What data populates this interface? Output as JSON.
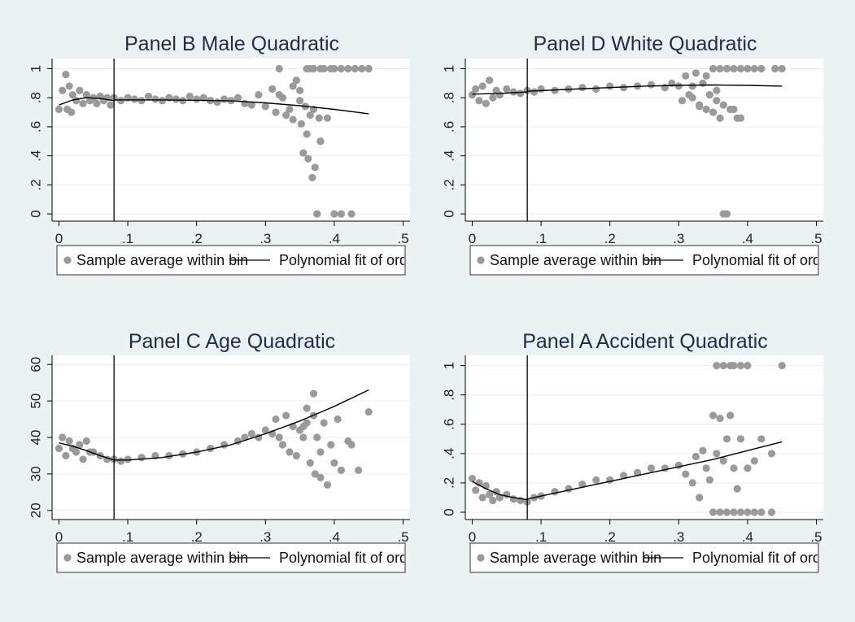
{
  "chart_data": [
    {
      "type": "scatter",
      "title": "Panel B Male Quadratic",
      "xlabel": "",
      "ylabel": "",
      "xlim": [
        -0.01,
        0.51
      ],
      "ylim": [
        -0.05,
        1.07
      ],
      "xticks": [
        0,
        0.1,
        0.2,
        0.3,
        0.4,
        0.5
      ],
      "xtick_labels": [
        "0",
        ".1",
        ".2",
        ".3",
        ".4",
        ".5"
      ],
      "yticks": [
        0,
        0.2,
        0.4,
        0.6,
        0.8,
        1
      ],
      "ytick_labels": [
        "0",
        ".2",
        ".4",
        ".6",
        ".8",
        "1"
      ],
      "grid": true,
      "cutoff_x": 0.08,
      "legend": {
        "position": "bottom",
        "entries": [
          "Sample average within bin",
          "Polynomial fit of orde"
        ]
      },
      "series": [
        {
          "kind": "scatter",
          "color": "#9a9a9a",
          "x": [
            0.0,
            0.005,
            0.01,
            0.012,
            0.015,
            0.018,
            0.02,
            0.025,
            0.03,
            0.035,
            0.04,
            0.045,
            0.05,
            0.055,
            0.06,
            0.065,
            0.07,
            0.075,
            0.08,
            0.09,
            0.1,
            0.11,
            0.12,
            0.13,
            0.14,
            0.15,
            0.16,
            0.17,
            0.18,
            0.19,
            0.2,
            0.21,
            0.22,
            0.23,
            0.24,
            0.25,
            0.26,
            0.27,
            0.28,
            0.29,
            0.3,
            0.31,
            0.315,
            0.32,
            0.325,
            0.33,
            0.335,
            0.34,
            0.345,
            0.35,
            0.352,
            0.355,
            0.358,
            0.36,
            0.362,
            0.365,
            0.368,
            0.37,
            0.372,
            0.375,
            0.378,
            0.38,
            0.385,
            0.39,
            0.395,
            0.4,
            0.41,
            0.42,
            0.43,
            0.44,
            0.45,
            0.375,
            0.4,
            0.41,
            0.425,
            0.36,
            0.37,
            0.38,
            0.35,
            0.34,
            0.365,
            0.38,
            0.32
          ],
          "y": [
            0.72,
            0.85,
            0.96,
            0.72,
            0.88,
            0.7,
            0.82,
            0.78,
            0.85,
            0.76,
            0.82,
            0.78,
            0.8,
            0.76,
            0.81,
            0.78,
            0.8,
            0.75,
            0.8,
            0.78,
            0.8,
            0.79,
            0.78,
            0.81,
            0.79,
            0.78,
            0.8,
            0.79,
            0.78,
            0.81,
            0.79,
            0.8,
            0.78,
            0.77,
            0.79,
            0.78,
            0.8,
            0.76,
            0.75,
            0.82,
            0.74,
            0.86,
            0.7,
            1.0,
            0.8,
            0.68,
            0.72,
            0.65,
            0.92,
            0.85,
            0.62,
            0.42,
            0.74,
            0.55,
            0.38,
            0.68,
            0.25,
            0.72,
            0.32,
            0.0,
            0.66,
            0.5,
            1.0,
            0.66,
            1.0,
            1.0,
            1.0,
            1.0,
            1.0,
            1.0,
            1.0,
            0.0,
            0.0,
            0.0,
            0.0,
            1.0,
            1.0,
            1.0,
            0.78,
            0.88,
            1.0,
            0.5,
            0.82
          ]
        },
        {
          "kind": "line",
          "color": "#000000",
          "x": [
            0.0,
            0.02,
            0.04,
            0.06,
            0.08
          ],
          "y": [
            0.75,
            0.785,
            0.8,
            0.795,
            0.78
          ]
        },
        {
          "kind": "line",
          "color": "#000000",
          "x": [
            0.08,
            0.15,
            0.2,
            0.25,
            0.3,
            0.35,
            0.4,
            0.45
          ],
          "y": [
            0.785,
            0.785,
            0.783,
            0.778,
            0.765,
            0.745,
            0.72,
            0.69
          ]
        }
      ]
    },
    {
      "type": "scatter",
      "title": "Panel D White Quadratic",
      "xlabel": "",
      "ylabel": "",
      "xlim": [
        -0.01,
        0.51
      ],
      "ylim": [
        -0.05,
        1.07
      ],
      "xticks": [
        0,
        0.1,
        0.2,
        0.3,
        0.4,
        0.5
      ],
      "xtick_labels": [
        "0",
        ".1",
        ".2",
        ".3",
        ".4",
        ".5"
      ],
      "yticks": [
        0,
        0.2,
        0.4,
        0.6,
        0.8,
        1
      ],
      "ytick_labels": [
        "0",
        ".2",
        ".4",
        ".6",
        ".8",
        "1"
      ],
      "grid": true,
      "cutoff_x": 0.08,
      "legend": {
        "position": "bottom",
        "entries": [
          "Sample average within bin",
          "Polynomial fit of order"
        ]
      },
      "series": [
        {
          "kind": "scatter",
          "color": "#9a9a9a",
          "x": [
            0.0,
            0.005,
            0.01,
            0.015,
            0.02,
            0.025,
            0.03,
            0.035,
            0.04,
            0.05,
            0.06,
            0.07,
            0.08,
            0.09,
            0.1,
            0.12,
            0.14,
            0.16,
            0.18,
            0.2,
            0.22,
            0.24,
            0.26,
            0.28,
            0.29,
            0.3,
            0.305,
            0.31,
            0.315,
            0.32,
            0.325,
            0.33,
            0.335,
            0.34,
            0.345,
            0.35,
            0.355,
            0.36,
            0.365,
            0.37,
            0.375,
            0.38,
            0.385,
            0.39,
            0.4,
            0.41,
            0.42,
            0.44,
            0.45,
            0.35,
            0.36,
            0.37,
            0.38,
            0.39,
            0.365,
            0.37,
            0.32,
            0.33,
            0.34,
            0.355
          ],
          "y": [
            0.82,
            0.86,
            0.78,
            0.88,
            0.76,
            0.92,
            0.8,
            0.85,
            0.82,
            0.86,
            0.84,
            0.83,
            0.85,
            0.84,
            0.86,
            0.85,
            0.86,
            0.87,
            0.86,
            0.88,
            0.87,
            0.88,
            0.89,
            0.87,
            0.9,
            0.88,
            0.78,
            0.95,
            0.82,
            0.88,
            0.97,
            0.75,
            0.9,
            0.72,
            0.82,
            0.7,
            0.85,
            0.66,
            0.75,
            1.0,
            0.72,
            1.0,
            0.66,
            1.0,
            1.0,
            1.0,
            1.0,
            1.0,
            1.0,
            1.0,
            1.0,
            1.0,
            0.72,
            0.66,
            0.0,
            0.0,
            0.8,
            0.74,
            0.95,
            0.78
          ]
        },
        {
          "kind": "line",
          "color": "#000000",
          "x": [
            0.0,
            0.04,
            0.08
          ],
          "y": [
            0.825,
            0.83,
            0.84
          ]
        },
        {
          "kind": "line",
          "color": "#000000",
          "x": [
            0.08,
            0.15,
            0.2,
            0.25,
            0.3,
            0.35,
            0.4,
            0.45
          ],
          "y": [
            0.845,
            0.86,
            0.87,
            0.88,
            0.885,
            0.888,
            0.885,
            0.88
          ]
        }
      ]
    },
    {
      "type": "scatter",
      "title": "Panel C Age Quadratic",
      "xlabel": "",
      "ylabel": "",
      "xlim": [
        -0.01,
        0.51
      ],
      "ylim": [
        17.5,
        62.5
      ],
      "xticks": [
        0,
        0.1,
        0.2,
        0.3,
        0.4,
        0.5
      ],
      "xtick_labels": [
        "0",
        ".1",
        ".2",
        ".3",
        ".4",
        ".5"
      ],
      "yticks": [
        20,
        30,
        40,
        50,
        60
      ],
      "ytick_labels": [
        "20",
        "30",
        "40",
        "50",
        "60"
      ],
      "grid": true,
      "cutoff_x": 0.08,
      "legend": {
        "position": "bottom",
        "entries": [
          "Sample average within bin",
          "Polynomial fit of orde"
        ]
      },
      "series": [
        {
          "kind": "scatter",
          "color": "#9a9a9a",
          "x": [
            0.0,
            0.005,
            0.01,
            0.015,
            0.02,
            0.025,
            0.03,
            0.035,
            0.04,
            0.045,
            0.05,
            0.06,
            0.07,
            0.08,
            0.09,
            0.1,
            0.12,
            0.14,
            0.16,
            0.18,
            0.2,
            0.22,
            0.24,
            0.26,
            0.27,
            0.28,
            0.29,
            0.3,
            0.31,
            0.315,
            0.32,
            0.325,
            0.33,
            0.335,
            0.34,
            0.345,
            0.35,
            0.355,
            0.36,
            0.365,
            0.37,
            0.372,
            0.375,
            0.38,
            0.385,
            0.39,
            0.395,
            0.4,
            0.405,
            0.41,
            0.42,
            0.425,
            0.435,
            0.45,
            0.36,
            0.37,
            0.38,
            0.355
          ],
          "y": [
            37,
            40,
            35,
            39,
            37,
            36,
            38,
            34,
            39,
            36,
            36,
            35,
            34,
            34,
            33.5,
            34,
            34.5,
            35,
            35,
            35.5,
            36,
            37,
            38,
            39,
            40,
            41,
            40,
            42,
            41,
            45,
            40,
            38,
            46,
            36,
            43,
            35,
            42,
            40,
            48,
            33,
            52,
            30,
            40,
            29,
            44,
            27,
            38,
            33,
            45,
            31,
            39,
            38,
            31,
            47,
            44,
            46,
            36,
            43
          ]
        },
        {
          "kind": "line",
          "color": "#000000",
          "x": [
            0.0,
            0.02,
            0.04,
            0.06,
            0.08
          ],
          "y": [
            38.5,
            37.6,
            36.4,
            35,
            33.8
          ]
        },
        {
          "kind": "line",
          "color": "#000000",
          "x": [
            0.08,
            0.1,
            0.15,
            0.2,
            0.25,
            0.3,
            0.35,
            0.4,
            0.45
          ],
          "y": [
            33.8,
            33.8,
            34.5,
            36,
            38,
            41,
            44.5,
            48.5,
            53
          ]
        }
      ]
    },
    {
      "type": "scatter",
      "title": "Panel A Accident Quadratic",
      "xlabel": "",
      "ylabel": "",
      "xlim": [
        -0.01,
        0.51
      ],
      "ylim": [
        -0.05,
        1.07
      ],
      "xticks": [
        0,
        0.1,
        0.2,
        0.3,
        0.4,
        0.5
      ],
      "xtick_labels": [
        "0",
        ".1",
        ".2",
        ".3",
        ".4",
        ".5"
      ],
      "yticks": [
        0,
        0.2,
        0.4,
        0.6,
        0.8,
        1
      ],
      "ytick_labels": [
        "0",
        ".2",
        ".4",
        ".6",
        ".8",
        "1"
      ],
      "grid": true,
      "cutoff_x": 0.08,
      "legend": {
        "position": "bottom",
        "entries": [
          "Sample average within bin",
          "Polynomial fit of order"
        ]
      },
      "series": [
        {
          "kind": "scatter",
          "color": "#9a9a9a",
          "x": [
            0.0,
            0.005,
            0.01,
            0.015,
            0.02,
            0.025,
            0.03,
            0.035,
            0.04,
            0.05,
            0.06,
            0.07,
            0.08,
            0.09,
            0.1,
            0.12,
            0.14,
            0.16,
            0.18,
            0.2,
            0.22,
            0.24,
            0.26,
            0.28,
            0.3,
            0.31,
            0.32,
            0.325,
            0.33,
            0.335,
            0.34,
            0.345,
            0.35,
            0.355,
            0.36,
            0.365,
            0.37,
            0.375,
            0.38,
            0.385,
            0.39,
            0.4,
            0.41,
            0.42,
            0.435,
            0.45,
            0.35,
            0.36,
            0.37,
            0.38,
            0.39,
            0.4,
            0.41,
            0.42,
            0.435,
            0.355,
            0.365,
            0.375,
            0.38,
            0.39,
            0.4
          ],
          "y": [
            0.23,
            0.15,
            0.2,
            0.1,
            0.18,
            0.12,
            0.08,
            0.14,
            0.1,
            0.12,
            0.09,
            0.08,
            0.07,
            0.1,
            0.11,
            0.14,
            0.16,
            0.19,
            0.22,
            0.22,
            0.25,
            0.27,
            0.3,
            0.3,
            0.32,
            0.26,
            0.2,
            0.38,
            0.1,
            0.42,
            0.3,
            0.22,
            0.66,
            0.4,
            0.64,
            0.35,
            0.5,
            0.66,
            0.3,
            0.16,
            0.5,
            0.3,
            0.35,
            0.5,
            0.4,
            1.0,
            0.0,
            0.0,
            0.0,
            0.0,
            0.0,
            0.0,
            0.0,
            0.0,
            0.0,
            1.0,
            1.0,
            1.0,
            1.0,
            1.0,
            1.0
          ]
        },
        {
          "kind": "line",
          "color": "#000000",
          "x": [
            0.0,
            0.02,
            0.04,
            0.06,
            0.08
          ],
          "y": [
            0.21,
            0.16,
            0.12,
            0.1,
            0.085
          ]
        },
        {
          "kind": "line",
          "color": "#000000",
          "x": [
            0.08,
            0.1,
            0.15,
            0.2,
            0.25,
            0.3,
            0.35,
            0.4,
            0.45
          ],
          "y": [
            0.09,
            0.11,
            0.16,
            0.21,
            0.26,
            0.31,
            0.36,
            0.42,
            0.48
          ]
        }
      ]
    }
  ]
}
